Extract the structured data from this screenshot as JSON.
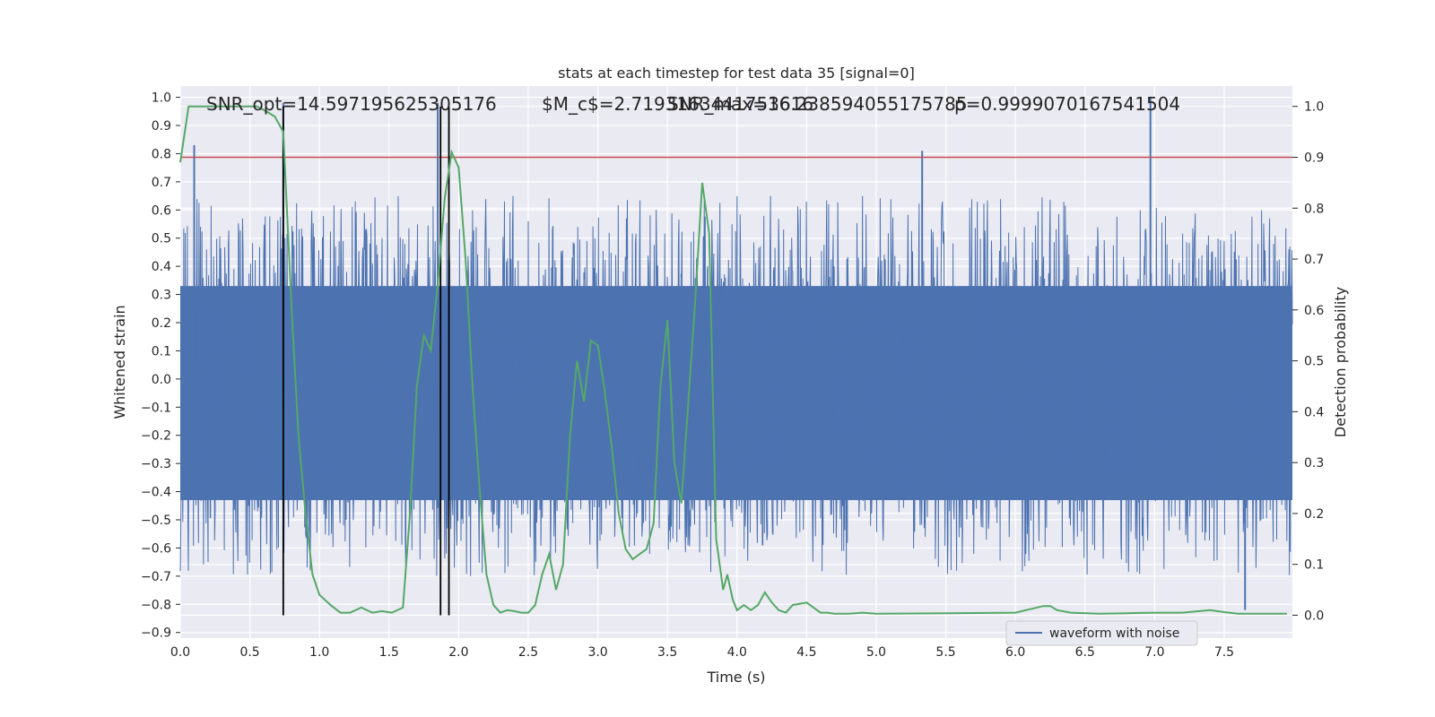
{
  "chart_data": {
    "type": "line",
    "title": "stats at each timestep for test data 35 [signal=0]",
    "xlabel": "Time (s)",
    "ylabel": "Whitened strain",
    "y2label": "Detection probability",
    "xlim": [
      0.0,
      7.99
    ],
    "ylim": [
      -0.92,
      1.04
    ],
    "y2lim": [
      -0.045,
      1.04
    ],
    "x_ticks": [
      0.0,
      0.5,
      1.0,
      1.5,
      2.0,
      2.5,
      3.0,
      3.5,
      4.0,
      4.5,
      5.0,
      5.5,
      6.0,
      6.5,
      7.0,
      7.5
    ],
    "x_tick_labels": [
      "0.0",
      "0.5",
      "1.0",
      "1.5",
      "2.0",
      "2.5",
      "3.0",
      "3.5",
      "4.0",
      "4.5",
      "5.0",
      "5.5",
      "6.0",
      "6.5",
      "7.0",
      "7.5"
    ],
    "y_ticks": [
      1.0,
      0.9,
      0.8,
      0.7,
      0.6,
      0.5,
      0.4,
      0.3,
      0.2,
      0.1,
      0.0,
      -0.1,
      -0.2,
      -0.3,
      -0.4,
      -0.5,
      -0.6,
      -0.7,
      -0.8,
      -0.9
    ],
    "y_tick_labels": [
      "1.0",
      "0.9",
      "0.8",
      "0.7",
      "0.6",
      "0.5",
      "0.4",
      "0.3",
      "0.2",
      "0.1",
      "0.0",
      "−0.1",
      "−0.2",
      "−0.3",
      "−0.4",
      "−0.5",
      "−0.6",
      "−0.7",
      "−0.8",
      "−0.9"
    ],
    "y2_ticks": [
      1.0,
      0.9,
      0.8,
      0.7,
      0.6,
      0.5,
      0.4,
      0.3,
      0.2,
      0.1,
      0.0
    ],
    "y2_tick_labels": [
      "1.0",
      "0.9",
      "0.8",
      "0.7",
      "0.6",
      "0.5",
      "0.4",
      "0.3",
      "0.2",
      "0.1",
      "0.0"
    ],
    "grid": true,
    "legend_position": "bottom-right",
    "annotations": [
      "SNR_opt=14.597195625305176",
      "$M_c$=2.7193163441753616",
      "SNR_max=16.238594055175785",
      "p=0.9999070167541504"
    ],
    "threshold": {
      "axis": "y2",
      "value": 0.9
    },
    "vertical_lines_x": [
      0.74,
      1.87,
      1.93
    ],
    "series": [
      {
        "name": "waveform with noise",
        "axis": "y",
        "kind": "noise",
        "band_low": -0.43,
        "band_high": 0.33,
        "peak_max": 1.0,
        "peak_min": -0.82,
        "notable_peaks": [
          [
            0.1,
            0.83
          ],
          [
            0.74,
            0.98
          ],
          [
            1.85,
            0.98
          ],
          [
            5.33,
            0.81
          ],
          [
            6.97,
            1.0
          ],
          [
            7.65,
            -0.82
          ]
        ]
      },
      {
        "name": "",
        "axis": "y2",
        "kind": "line",
        "x": [
          0.0,
          0.06,
          0.12,
          0.25,
          0.4,
          0.55,
          0.62,
          0.68,
          0.74,
          0.8,
          0.85,
          0.9,
          0.95,
          1.0,
          1.08,
          1.15,
          1.22,
          1.3,
          1.38,
          1.45,
          1.52,
          1.6,
          1.65,
          1.7,
          1.75,
          1.8,
          1.85,
          1.9,
          1.95,
          2.0,
          2.05,
          2.1,
          2.15,
          2.2,
          2.25,
          2.3,
          2.35,
          2.4,
          2.45,
          2.5,
          2.55,
          2.6,
          2.65,
          2.7,
          2.75,
          2.8,
          2.85,
          2.9,
          2.95,
          3.0,
          3.05,
          3.1,
          3.15,
          3.2,
          3.25,
          3.3,
          3.35,
          3.4,
          3.45,
          3.5,
          3.55,
          3.6,
          3.65,
          3.7,
          3.75,
          3.8,
          3.85,
          3.9,
          3.93,
          3.97,
          4.0,
          4.05,
          4.1,
          4.15,
          4.2,
          4.25,
          4.3,
          4.35,
          4.4,
          4.5,
          4.55,
          4.6,
          4.65,
          4.7,
          4.75,
          4.8,
          4.85,
          4.9,
          5.0,
          5.5,
          6.0,
          6.2,
          6.25,
          6.3,
          6.4,
          6.6,
          6.8,
          7.0,
          7.2,
          7.4,
          7.5,
          7.6,
          7.8,
          7.95
        ],
        "y": [
          0.89,
          1.0,
          1.0,
          1.0,
          1.0,
          1.0,
          0.99,
          0.98,
          0.95,
          0.6,
          0.35,
          0.2,
          0.08,
          0.04,
          0.02,
          0.005,
          0.005,
          0.015,
          0.005,
          0.008,
          0.005,
          0.015,
          0.2,
          0.45,
          0.55,
          0.52,
          0.65,
          0.82,
          0.91,
          0.88,
          0.7,
          0.45,
          0.25,
          0.08,
          0.02,
          0.005,
          0.01,
          0.008,
          0.005,
          0.005,
          0.02,
          0.08,
          0.12,
          0.05,
          0.1,
          0.35,
          0.5,
          0.42,
          0.54,
          0.53,
          0.44,
          0.33,
          0.2,
          0.13,
          0.11,
          0.12,
          0.13,
          0.18,
          0.45,
          0.58,
          0.3,
          0.22,
          0.42,
          0.62,
          0.85,
          0.75,
          0.15,
          0.05,
          0.08,
          0.03,
          0.01,
          0.02,
          0.01,
          0.02,
          0.045,
          0.025,
          0.01,
          0.005,
          0.02,
          0.025,
          0.015,
          0.005,
          0.005,
          0.003,
          0.003,
          0.003,
          0.004,
          0.005,
          0.003,
          0.004,
          0.005,
          0.018,
          0.018,
          0.01,
          0.005,
          0.003,
          0.004,
          0.005,
          0.005,
          0.01,
          0.006,
          0.003,
          0.003,
          0.003
        ],
        "color": "#55a868"
      }
    ],
    "colors": {
      "noise": "#4c72b0",
      "probability": "#55a868",
      "threshold": "#c44e52",
      "vlines": "#000000",
      "plot_bg": "#eaeaf2",
      "grid": "#ffffff"
    }
  }
}
